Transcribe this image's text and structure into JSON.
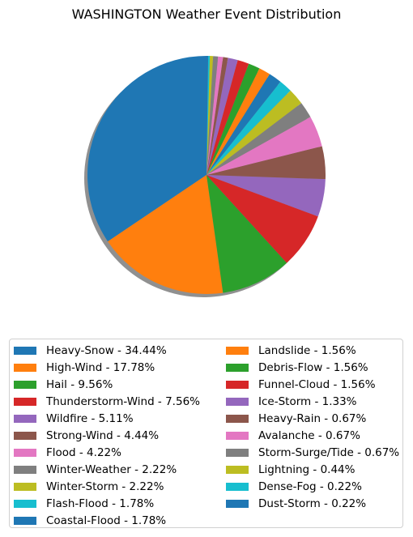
{
  "chart_data": {
    "type": "pie",
    "title": "WASHINGTON Weather Event Distribution",
    "start_angle_deg": 90,
    "direction": "counterclockwise",
    "shadow": true,
    "legend_placement": "bottom",
    "legend_columns": 2,
    "slices": [
      {
        "label": "Heavy-Snow",
        "value": 34.44,
        "color": "#1f77b4",
        "legend_text": "Heavy-Snow - 34.44%"
      },
      {
        "label": "High-Wind",
        "value": 17.78,
        "color": "#ff7f0e",
        "legend_text": "High-Wind - 17.78%"
      },
      {
        "label": "Hail",
        "value": 9.56,
        "color": "#2ca02c",
        "legend_text": "Hail - 9.56%"
      },
      {
        "label": "Thunderstorm-Wind",
        "value": 7.56,
        "color": "#d62728",
        "legend_text": "Thunderstorm-Wind - 7.56%"
      },
      {
        "label": "Wildfire",
        "value": 5.11,
        "color": "#9467bd",
        "legend_text": "Wildfire - 5.11%"
      },
      {
        "label": "Strong-Wind",
        "value": 4.44,
        "color": "#8c564b",
        "legend_text": "Strong-Wind - 4.44%"
      },
      {
        "label": "Flood",
        "value": 4.22,
        "color": "#e377c2",
        "legend_text": "Flood - 4.22%"
      },
      {
        "label": "Winter-Weather",
        "value": 2.22,
        "color": "#7f7f7f",
        "legend_text": "Winter-Weather - 2.22%"
      },
      {
        "label": "Winter-Storm",
        "value": 2.22,
        "color": "#bcbd22",
        "legend_text": "Winter-Storm - 2.22%"
      },
      {
        "label": "Flash-Flood",
        "value": 1.78,
        "color": "#17becf",
        "legend_text": "Flash-Flood - 1.78%"
      },
      {
        "label": "Coastal-Flood",
        "value": 1.78,
        "color": "#1f77b4",
        "legend_text": "Coastal-Flood - 1.78%"
      },
      {
        "label": "Landslide",
        "value": 1.56,
        "color": "#ff7f0e",
        "legend_text": "Landslide - 1.56%"
      },
      {
        "label": "Debris-Flow",
        "value": 1.56,
        "color": "#2ca02c",
        "legend_text": "Debris-Flow - 1.56%"
      },
      {
        "label": "Funnel-Cloud",
        "value": 1.56,
        "color": "#d62728",
        "legend_text": "Funnel-Cloud - 1.56%"
      },
      {
        "label": "Ice-Storm",
        "value": 1.33,
        "color": "#9467bd",
        "legend_text": "Ice-Storm - 1.33%"
      },
      {
        "label": "Heavy-Rain",
        "value": 0.67,
        "color": "#8c564b",
        "legend_text": "Heavy-Rain - 0.67%"
      },
      {
        "label": "Avalanche",
        "value": 0.67,
        "color": "#e377c2",
        "legend_text": "Avalanche - 0.67%"
      },
      {
        "label": "Storm-Surge/Tide",
        "value": 0.67,
        "color": "#7f7f7f",
        "legend_text": "Storm-Surge/Tide - 0.67%"
      },
      {
        "label": "Lightning",
        "value": 0.44,
        "color": "#bcbd22",
        "legend_text": "Lightning - 0.44%"
      },
      {
        "label": "Dense-Fog",
        "value": 0.22,
        "color": "#17becf",
        "legend_text": "Dense-Fog - 0.22%"
      },
      {
        "label": "Dust-Storm",
        "value": 0.22,
        "color": "#1f77b4",
        "legend_text": "Dust-Storm - 0.22%"
      }
    ]
  }
}
